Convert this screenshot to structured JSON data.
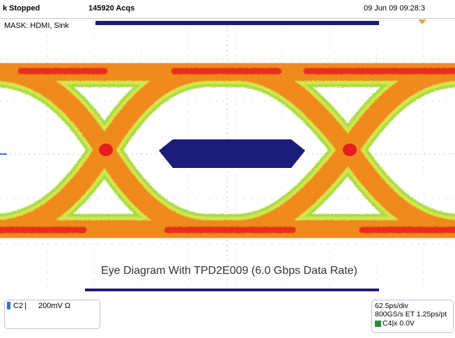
{
  "status": {
    "run_state": "k  Stopped",
    "acqs": "145920 Acqs",
    "datetime": "09 Jun 09 09:28:3"
  },
  "mask_label": "MASK: HDMI, Sink",
  "caption": "Eye Diagram With TPD2E009 (6.0 Gbps Data Rate)",
  "channel": {
    "name": "C2",
    "scale": "200mV Ω"
  },
  "timebase": {
    "time_div": "62.5ps/div",
    "sample": "800GS/s ET 1.25ps/pt",
    "trigger": "C4",
    "trigger_level": "x 0.0V"
  },
  "colors": {
    "mask": "#1c1c7a",
    "eye_outer": "#9ad23c",
    "eye_mid": "#f08a1e",
    "eye_core": "#e8231e"
  }
}
